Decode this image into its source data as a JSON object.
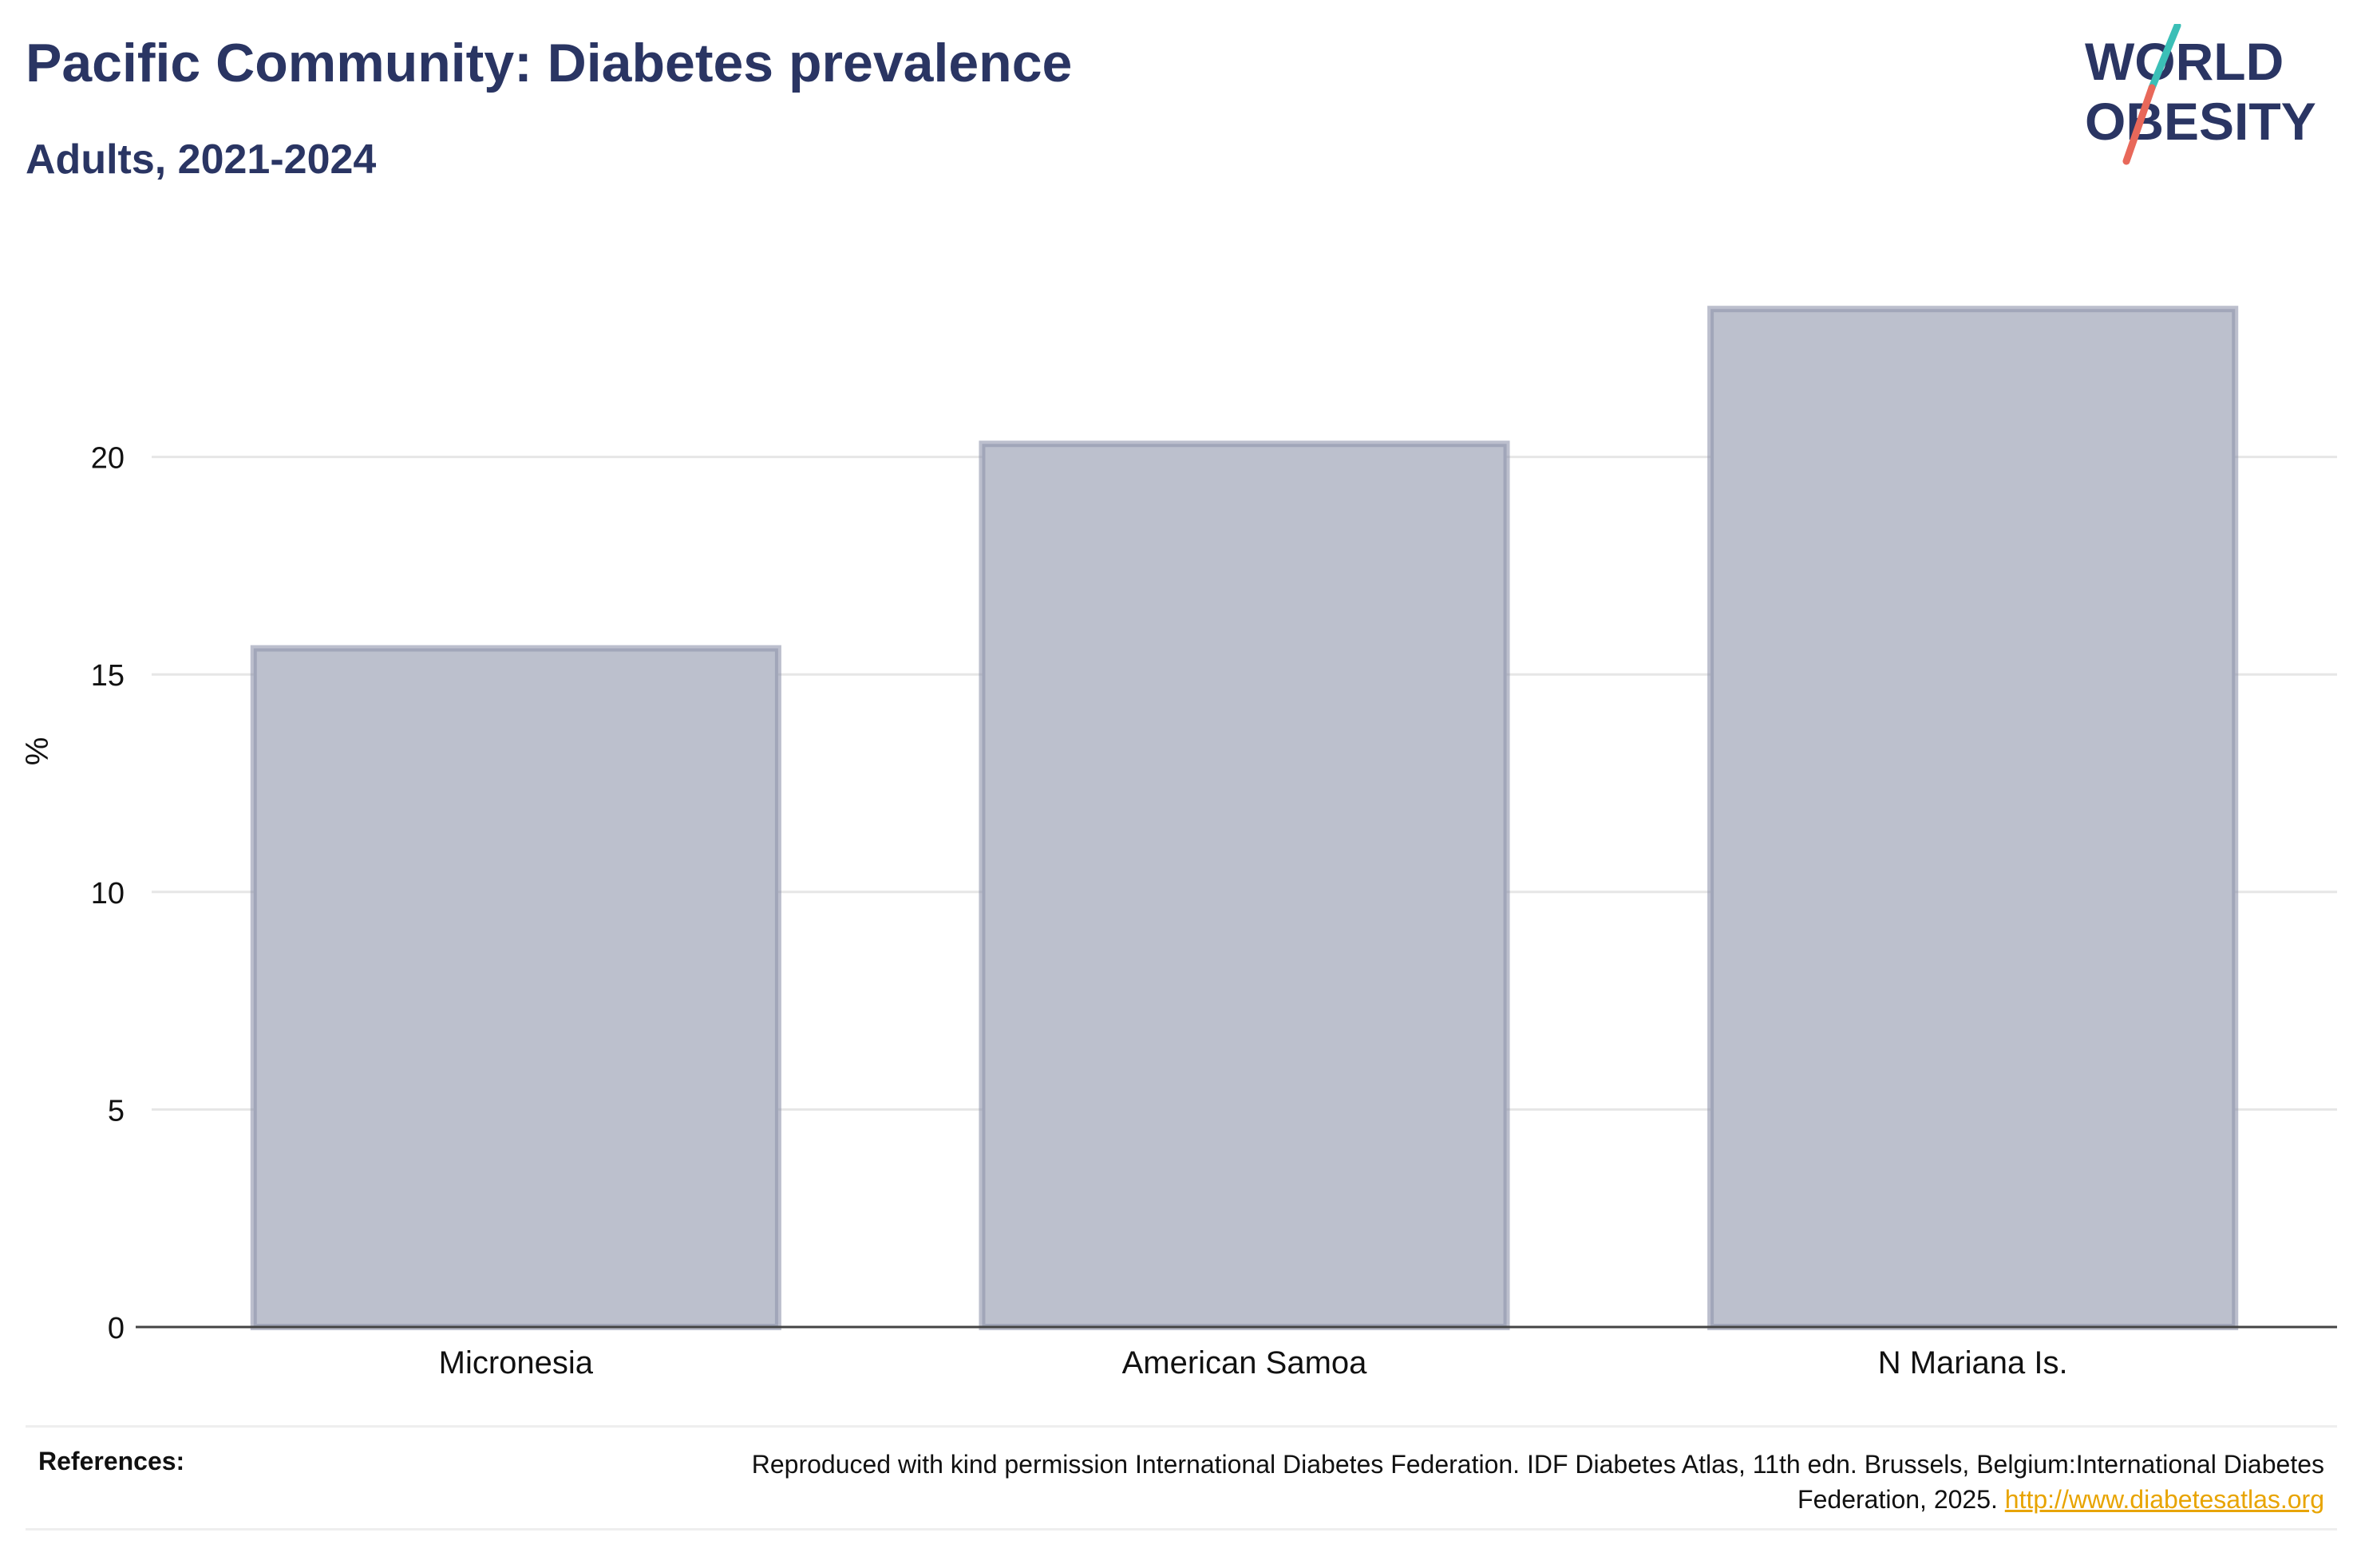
{
  "header": {
    "title": "Pacific Community: Diabetes prevalence",
    "subtitle": "Adults, 2021-2024"
  },
  "logo": {
    "line1": "WORLD",
    "line2": "OBESITY",
    "accent_teal": "#3bbfb7",
    "accent_coral": "#e8685a",
    "text_color": "#2a3563"
  },
  "chart_data": {
    "type": "bar",
    "categories": [
      "Micronesia",
      "American Samoa",
      "N Mariana Is."
    ],
    "values": [
      15.6,
      20.3,
      23.4
    ],
    "ylabel": "%",
    "xlabel": "",
    "ylim": [
      0,
      25
    ],
    "yticks": [
      0,
      5,
      10,
      15,
      20
    ],
    "grid": true,
    "bar_fill": "#bcc0cd",
    "bar_stroke": "#8f95ab"
  },
  "references": {
    "label": "References:",
    "text": "Reproduced with kind permission International Diabetes Federation. IDF Diabetes Atlas, 11th edn. Brussels, Belgium:International Diabetes Federation, 2025.",
    "link": "http://www.diabetesatlas.org"
  }
}
